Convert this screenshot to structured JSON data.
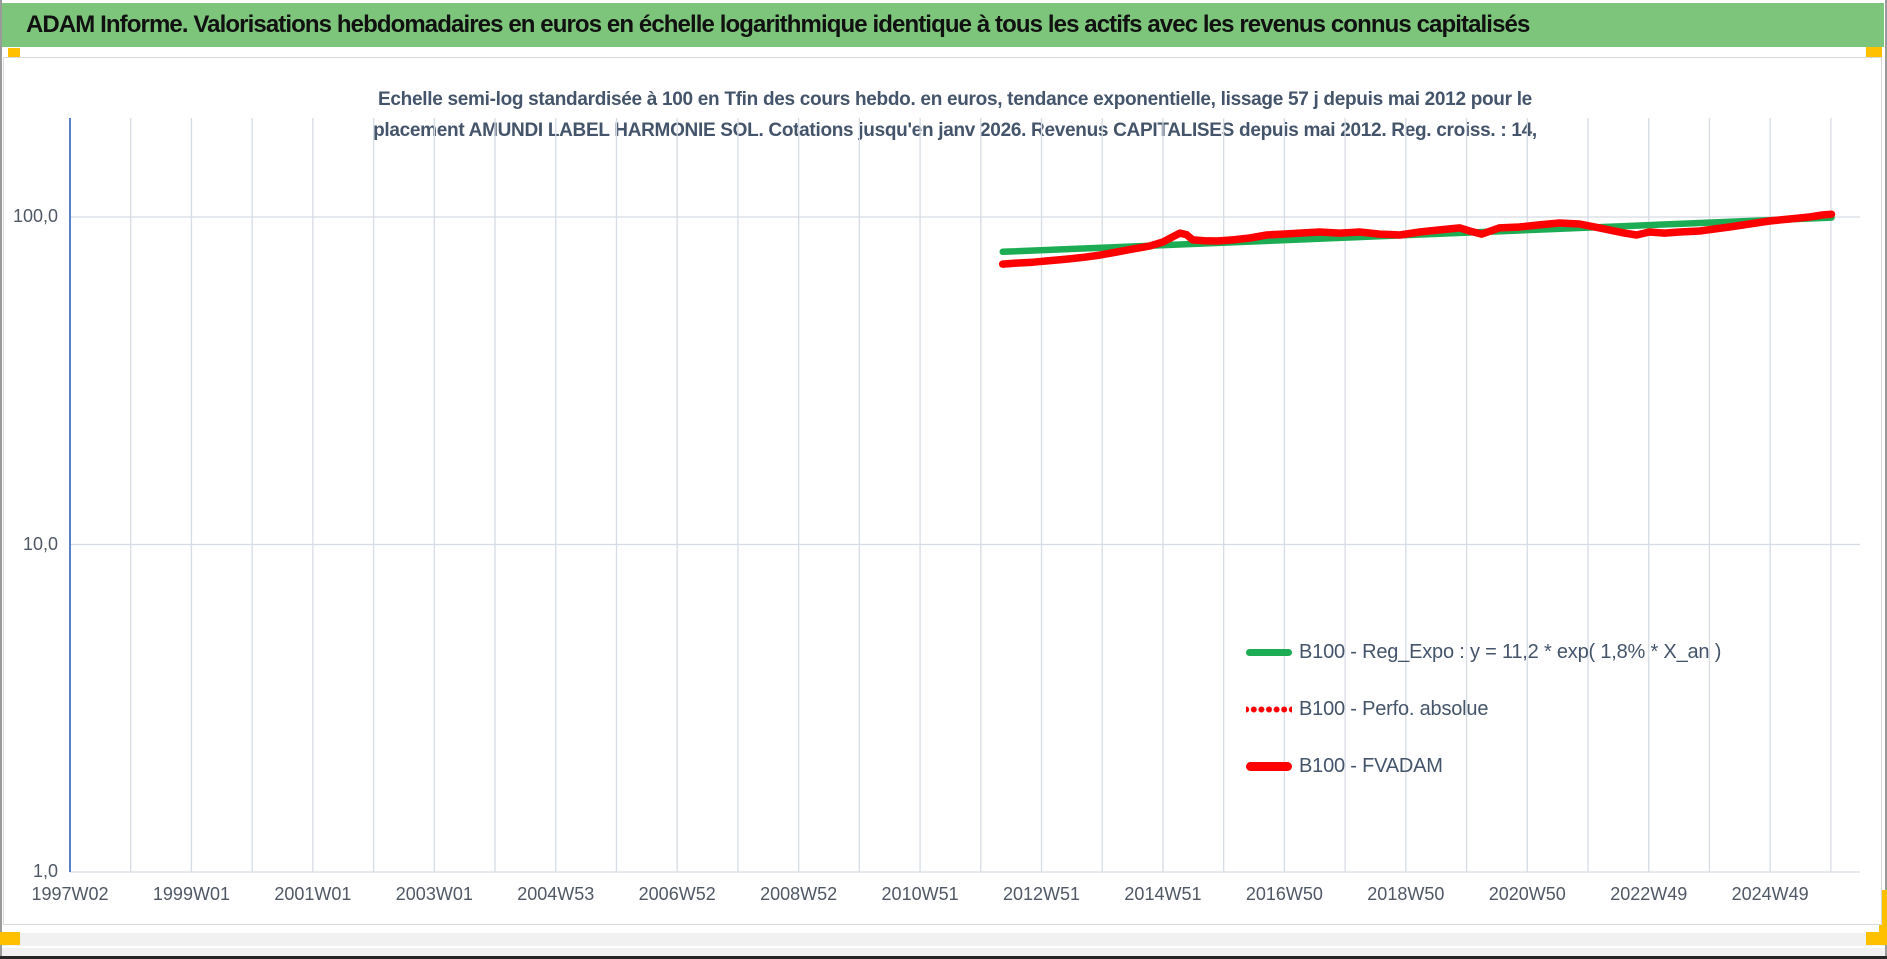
{
  "header": {
    "title": "ADAM Informe. Valorisations hebdomadaires en euros en échelle logarithmique identique à tous les actifs avec les revenus connus capitalisés"
  },
  "colors": {
    "header_bg": "#7cc57b",
    "title_text": "#44546a",
    "tick_text": "#4f5864",
    "axis_line_blue": "#4472c4",
    "gridline": "#d6dce4",
    "green_series": "#1cac53",
    "red_series": "#fe0000",
    "marker_yellow": "#ffc000"
  },
  "chart_data": {
    "type": "line",
    "title_line1": "Echelle semi-log standardisée à 100 en Tfin des cours hebdo. en euros, tendance exponentielle, lissage 57 j depuis mai 2012 pour le",
    "title_line2": "placement AMUNDI LABEL HARMONIE SOL. Cotations jusqu'en janv 2026. Revenus CAPITALISES depuis mai 2012. Reg. croiss. : 14,",
    "y_axis": {
      "scale": "log",
      "range": [
        1,
        200
      ],
      "ticks": [
        {
          "label": "100,0",
          "value": 100
        },
        {
          "label": "10,0",
          "value": 10
        },
        {
          "label": "1,0",
          "value": 1
        }
      ]
    },
    "x_axis": {
      "range_years": [
        1997.04,
        2026.5
      ],
      "tick_interval_years": 2,
      "ticks": [
        "1997W02",
        "1999W01",
        "2001W01",
        "2003W01",
        "2004W53",
        "2006W52",
        "2008W52",
        "2010W51",
        "2012W51",
        "2014W51",
        "2016W50",
        "2018W50",
        "2020W50",
        "2022W49",
        "2024W49"
      ]
    },
    "grid": {
      "vertical_every_years": 1,
      "horizontal_at_values": [
        100,
        10,
        1
      ]
    },
    "legend_position": "inside-lower-right",
    "series": [
      {
        "name": "B100 - Reg_Expo : y = 11,2 * exp( 1,8% *  X_an )",
        "color": "#1cac53",
        "style": "solid",
        "stroke_width": 6.5,
        "points": [
          [
            2012.4,
            78.3
          ],
          [
            2026.05,
            99.6
          ]
        ]
      },
      {
        "name": "B100 - Perfo. absolue",
        "color": "#fe0000",
        "style": "dotted",
        "stroke_width": 6,
        "coincides_with": "B100 - FVADAM",
        "points": []
      },
      {
        "name": "B100 - FVADAM",
        "color": "#fe0000",
        "style": "solid",
        "stroke_width": 7.5,
        "points": [
          [
            2012.4,
            71.8
          ],
          [
            2012.62,
            72.3
          ],
          [
            2012.9,
            72.8
          ],
          [
            2013.18,
            73.6
          ],
          [
            2013.46,
            74.4
          ],
          [
            2013.75,
            75.4
          ],
          [
            2014.0,
            76.5
          ],
          [
            2014.28,
            78.2
          ],
          [
            2014.55,
            79.9
          ],
          [
            2014.82,
            81.5
          ],
          [
            2015.04,
            83.9
          ],
          [
            2015.2,
            87.0
          ],
          [
            2015.32,
            89.3
          ],
          [
            2015.43,
            88.3
          ],
          [
            2015.53,
            85.1
          ],
          [
            2015.72,
            84.6
          ],
          [
            2015.93,
            84.5
          ],
          [
            2016.19,
            85.1
          ],
          [
            2016.47,
            86.3
          ],
          [
            2016.75,
            88.1
          ],
          [
            2017.01,
            88.7
          ],
          [
            2017.29,
            89.3
          ],
          [
            2017.62,
            90.0
          ],
          [
            2017.95,
            89.3
          ],
          [
            2018.28,
            90.0
          ],
          [
            2018.61,
            88.7
          ],
          [
            2018.94,
            88.1
          ],
          [
            2019.27,
            90.0
          ],
          [
            2019.6,
            91.3
          ],
          [
            2019.93,
            92.6
          ],
          [
            2020.09,
            90.6
          ],
          [
            2020.29,
            88.7
          ],
          [
            2020.58,
            92.6
          ],
          [
            2020.91,
            93.2
          ],
          [
            2021.24,
            94.6
          ],
          [
            2021.57,
            95.9
          ],
          [
            2021.9,
            95.2
          ],
          [
            2022.23,
            92.6
          ],
          [
            2022.64,
            89.3
          ],
          [
            2022.84,
            88.1
          ],
          [
            2023.05,
            90.0
          ],
          [
            2023.3,
            89.3
          ],
          [
            2023.55,
            90.0
          ],
          [
            2023.88,
            90.6
          ],
          [
            2024.12,
            91.9
          ],
          [
            2024.37,
            93.2
          ],
          [
            2024.7,
            95.2
          ],
          [
            2025.03,
            97.2
          ],
          [
            2025.36,
            98.6
          ],
          [
            2025.69,
            100.0
          ],
          [
            2025.9,
            101.4
          ],
          [
            2026.05,
            102.0
          ]
        ]
      }
    ]
  }
}
